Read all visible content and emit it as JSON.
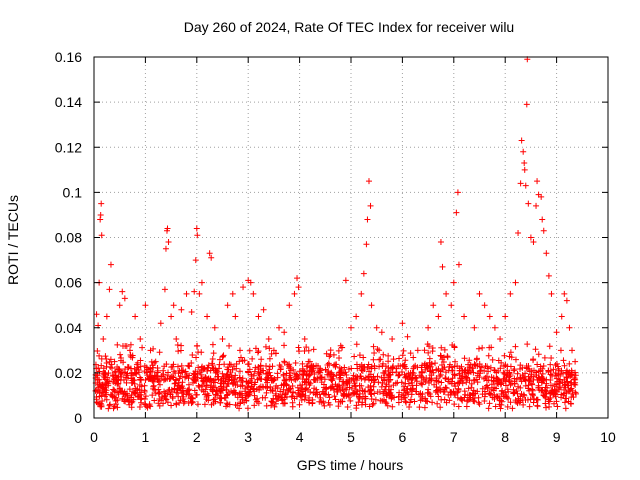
{
  "chart_data": {
    "type": "scatter",
    "title": "Day 260 of 2024, Rate Of TEC Index for receiver wilu",
    "xlabel": "GPS time / hours",
    "ylabel": "ROTI / TECUs",
    "xlim": [
      0,
      10
    ],
    "ylim": [
      0,
      0.16
    ],
    "x_ticks": [
      "0",
      "1",
      "2",
      "3",
      "4",
      "5",
      "6",
      "7",
      "8",
      "9",
      "10"
    ],
    "y_ticks": [
      "0",
      "0.02",
      "0.04",
      "0.06",
      "0.08",
      "0.1",
      "0.12",
      "0.14",
      "0.16"
    ],
    "grid": true,
    "marker": "+",
    "series_color": "#ff0000",
    "series": [
      {
        "name": "ROTI",
        "points": [
          [
            0.03,
            0.012
          ],
          [
            0.05,
            0.046
          ],
          [
            0.08,
            0.041
          ],
          [
            0.1,
            0.06
          ],
          [
            0.12,
            0.088
          ],
          [
            0.13,
            0.09
          ],
          [
            0.14,
            0.095
          ],
          [
            0.15,
            0.081
          ],
          [
            0.18,
            0.035
          ],
          [
            0.22,
            0.02
          ],
          [
            0.25,
            0.045
          ],
          [
            0.3,
            0.057
          ],
          [
            0.33,
            0.068
          ],
          [
            0.4,
            0.025
          ],
          [
            0.5,
            0.05
          ],
          [
            0.55,
            0.056
          ],
          [
            0.6,
            0.053
          ],
          [
            0.7,
            0.03
          ],
          [
            0.8,
            0.045
          ],
          [
            0.9,
            0.035
          ],
          [
            1.0,
            0.05
          ],
          [
            1.1,
            0.03
          ],
          [
            1.2,
            0.025
          ],
          [
            1.3,
            0.042
          ],
          [
            1.38,
            0.057
          ],
          [
            1.4,
            0.075
          ],
          [
            1.42,
            0.083
          ],
          [
            1.43,
            0.084
          ],
          [
            1.45,
            0.078
          ],
          [
            1.5,
            0.045
          ],
          [
            1.55,
            0.05
          ],
          [
            1.6,
            0.035
          ],
          [
            1.7,
            0.048
          ],
          [
            1.8,
            0.055
          ],
          [
            1.9,
            0.047
          ],
          [
            1.95,
            0.056
          ],
          [
            1.98,
            0.07
          ],
          [
            2.0,
            0.084
          ],
          [
            2.01,
            0.081
          ],
          [
            2.05,
            0.055
          ],
          [
            2.1,
            0.06
          ],
          [
            2.2,
            0.045
          ],
          [
            2.25,
            0.073
          ],
          [
            2.28,
            0.071
          ],
          [
            2.35,
            0.04
          ],
          [
            2.5,
            0.035
          ],
          [
            2.6,
            0.05
          ],
          [
            2.7,
            0.055
          ],
          [
            2.75,
            0.045
          ],
          [
            2.9,
            0.058
          ],
          [
            3.0,
            0.061
          ],
          [
            3.05,
            0.06
          ],
          [
            3.1,
            0.055
          ],
          [
            3.2,
            0.045
          ],
          [
            3.3,
            0.048
          ],
          [
            3.4,
            0.035
          ],
          [
            3.5,
            0.03
          ],
          [
            3.6,
            0.04
          ],
          [
            3.7,
            0.038
          ],
          [
            3.8,
            0.05
          ],
          [
            3.9,
            0.055
          ],
          [
            3.95,
            0.062
          ],
          [
            3.98,
            0.058
          ],
          [
            4.1,
            0.035
          ],
          [
            4.2,
            0.025
          ],
          [
            4.4,
            0.022
          ],
          [
            4.6,
            0.028
          ],
          [
            4.8,
            0.032
          ],
          [
            4.9,
            0.061
          ],
          [
            5.0,
            0.04
          ],
          [
            5.1,
            0.045
          ],
          [
            5.2,
            0.055
          ],
          [
            5.25,
            0.064
          ],
          [
            5.3,
            0.077
          ],
          [
            5.32,
            0.088
          ],
          [
            5.35,
            0.105
          ],
          [
            5.38,
            0.094
          ],
          [
            5.4,
            0.05
          ],
          [
            5.5,
            0.04
          ],
          [
            5.6,
            0.038
          ],
          [
            5.8,
            0.035
          ],
          [
            6.0,
            0.042
          ],
          [
            6.1,
            0.036
          ],
          [
            6.3,
            0.03
          ],
          [
            6.5,
            0.04
          ],
          [
            6.6,
            0.05
          ],
          [
            6.7,
            0.045
          ],
          [
            6.75,
            0.078
          ],
          [
            6.78,
            0.067
          ],
          [
            6.85,
            0.055
          ],
          [
            6.95,
            0.05
          ],
          [
            7.0,
            0.06
          ],
          [
            7.05,
            0.091
          ],
          [
            7.08,
            0.1
          ],
          [
            7.1,
            0.068
          ],
          [
            7.2,
            0.045
          ],
          [
            7.4,
            0.04
          ],
          [
            7.5,
            0.055
          ],
          [
            7.6,
            0.05
          ],
          [
            7.7,
            0.045
          ],
          [
            7.8,
            0.04
          ],
          [
            7.9,
            0.035
          ],
          [
            8.0,
            0.045
          ],
          [
            8.1,
            0.055
          ],
          [
            8.2,
            0.06
          ],
          [
            8.25,
            0.082
          ],
          [
            8.3,
            0.104
          ],
          [
            8.32,
            0.123
          ],
          [
            8.35,
            0.118
          ],
          [
            8.37,
            0.113
          ],
          [
            8.38,
            0.11
          ],
          [
            8.4,
            0.103
          ],
          [
            8.42,
            0.139
          ],
          [
            8.43,
            0.159
          ],
          [
            8.45,
            0.095
          ],
          [
            8.5,
            0.08
          ],
          [
            8.55,
            0.078
          ],
          [
            8.6,
            0.094
          ],
          [
            8.62,
            0.105
          ],
          [
            8.65,
            0.099
          ],
          [
            8.7,
            0.098
          ],
          [
            8.72,
            0.088
          ],
          [
            8.75,
            0.083
          ],
          [
            8.8,
            0.073
          ],
          [
            8.85,
            0.063
          ],
          [
            8.9,
            0.055
          ],
          [
            9.0,
            0.038
          ],
          [
            9.1,
            0.045
          ],
          [
            9.15,
            0.055
          ],
          [
            9.2,
            0.052
          ],
          [
            9.25,
            0.04
          ],
          [
            9.3,
            0.03
          ],
          [
            9.36,
            0.025
          ]
        ]
      }
    ],
    "dense_band": {
      "x_range": [
        0.02,
        9.38
      ],
      "y_floor": [
        0.004,
        0.012
      ],
      "y_typical": [
        0.01,
        0.024
      ]
    }
  }
}
